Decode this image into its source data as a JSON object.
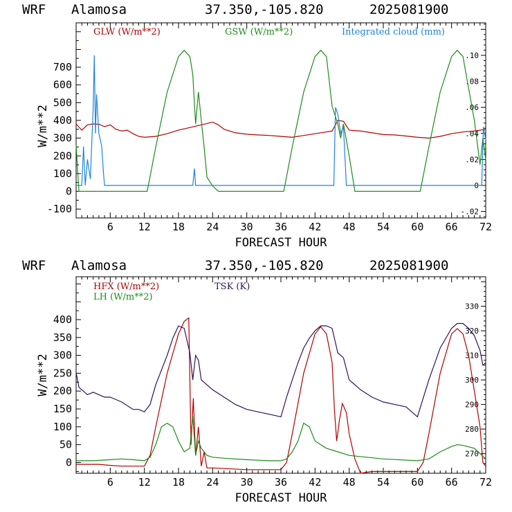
{
  "header": {
    "model": "WRF",
    "station": "Alamosa",
    "coords": "37.350,-105.820",
    "init": "2025081900"
  },
  "colors": {
    "red": "#b00000",
    "green": "#1a8c1a",
    "blue": "#1e82dc",
    "purple": "#2e0f5a"
  },
  "chart_data": [
    {
      "type": "line",
      "xlabel": "FORECAST HOUR",
      "ylabel": "W/m**2",
      "xlim": [
        0,
        72
      ],
      "ylim": [
        -150,
        950
      ],
      "y2lim": [
        -0.025,
        0.125
      ],
      "xticks": [
        6,
        12,
        18,
        24,
        30,
        36,
        42,
        48,
        54,
        60,
        66,
        72
      ],
      "xtick_labels": [
        "6",
        "12",
        "18",
        "24",
        "30",
        "36",
        "42",
        "48",
        "54",
        "60",
        "66",
        "72"
      ],
      "yticks": [
        -100,
        0,
        100,
        200,
        300,
        400,
        500,
        600,
        700
      ],
      "ytick_labels": [
        "-100",
        "0",
        "100",
        "200",
        "300",
        "400",
        "500",
        "600",
        "700"
      ],
      "y2ticks": [
        -0.02,
        0,
        0.02,
        0.04,
        0.06,
        0.08,
        0.1
      ],
      "y2tick_labels": [
        "-.02",
        "0",
        ".02",
        ".04",
        ".06",
        ".08",
        ".10"
      ],
      "series": [
        {
          "name": "GLW (W/m**2)",
          "axis": "left",
          "color": "#b00000",
          "x": [
            0,
            1,
            2,
            3,
            4,
            5,
            6,
            7,
            8,
            9,
            10,
            11,
            12,
            14,
            16,
            18,
            20,
            22,
            24,
            25,
            26,
            28,
            30,
            32,
            34,
            36,
            38,
            40,
            42,
            44,
            45,
            46,
            47,
            48,
            50,
            52,
            54,
            56,
            58,
            60,
            62,
            64,
            66,
            68,
            70,
            71,
            72
          ],
          "y": [
            380,
            345,
            375,
            380,
            378,
            365,
            375,
            350,
            340,
            345,
            325,
            310,
            305,
            310,
            325,
            345,
            360,
            375,
            390,
            375,
            350,
            330,
            322,
            318,
            315,
            310,
            305,
            315,
            325,
            335,
            340,
            400,
            395,
            345,
            340,
            330,
            320,
            318,
            312,
            305,
            300,
            310,
            325,
            335,
            340,
            345,
            350
          ]
        },
        {
          "name": "GSW (W/m**2)",
          "axis": "left",
          "color": "#1a8c1a",
          "x": [
            0,
            0.5,
            12.5,
            14,
            16,
            18,
            19,
            20,
            20.5,
            21,
            21.5,
            22,
            22.5,
            23,
            24,
            25,
            36.5,
            38,
            40,
            42,
            43,
            44,
            45,
            46,
            46.5,
            47,
            48,
            49,
            60.5,
            62,
            64,
            66,
            67,
            68,
            70,
            71,
            71.5,
            72
          ],
          "y": [
            260,
            0,
            0,
            250,
            560,
            760,
            795,
            760,
            660,
            380,
            560,
            400,
            250,
            80,
            30,
            0,
            0,
            250,
            560,
            760,
            795,
            760,
            480,
            380,
            300,
            380,
            200,
            0,
            0,
            250,
            560,
            760,
            795,
            760,
            400,
            150,
            300,
            180
          ]
        },
        {
          "name": "Integrated cloud (mm)",
          "axis": "right",
          "color": "#1e82dc",
          "x": [
            0,
            1,
            1.3,
            1.6,
            2,
            2.5,
            3,
            3.2,
            3.4,
            3.6,
            4,
            4.5,
            4.8,
            5,
            20.5,
            20.8,
            21,
            45.3,
            45.6,
            46,
            46.5,
            47,
            47.5,
            71.3,
            71.6,
            72
          ],
          "y": [
            0,
            0,
            0.03,
            0,
            0.02,
            0.005,
            0.06,
            0.1,
            0.04,
            0.07,
            0.04,
            0.03,
            0.01,
            0,
            0,
            0.013,
            0,
            0,
            0.06,
            0.055,
            0.04,
            0.045,
            0,
            0,
            0.045,
            0.035
          ]
        }
      ]
    },
    {
      "type": "line",
      "xlabel": "FORECAST HOUR",
      "ylabel": "W/m**2",
      "xlim": [
        0,
        72
      ],
      "ylim": [
        -30,
        520
      ],
      "y2lim": [
        262,
        342
      ],
      "xticks": [
        6,
        12,
        18,
        24,
        30,
        36,
        42,
        48,
        54,
        60,
        66,
        72
      ],
      "xtick_labels": [
        "6",
        "12",
        "18",
        "24",
        "30",
        "36",
        "42",
        "48",
        "54",
        "60",
        "66",
        "72"
      ],
      "yticks": [
        0,
        50,
        100,
        150,
        200,
        250,
        300,
        350,
        400
      ],
      "ytick_labels": [
        "0",
        "50",
        "100",
        "150",
        "200",
        "250",
        "300",
        "350",
        "400"
      ],
      "y2ticks": [
        270,
        280,
        290,
        300,
        310,
        320,
        330
      ],
      "y2tick_labels": [
        "270",
        "280",
        "290",
        "300",
        "310",
        "320",
        "330"
      ],
      "series": [
        {
          "name": "HFX (W/m**2)",
          "axis": "left",
          "color": "#b00000",
          "x": [
            0,
            2,
            4,
            6,
            8,
            10,
            12,
            13,
            14,
            16,
            18,
            19,
            19.8,
            20.2,
            20.6,
            21,
            21.5,
            22,
            22.5,
            23,
            24,
            30,
            36,
            37,
            38,
            40,
            42,
            43,
            44,
            45,
            45.4,
            45.8,
            46.3,
            46.8,
            47.5,
            48,
            49,
            50,
            52,
            56,
            60,
            61,
            62,
            64,
            66,
            67,
            68,
            69,
            70,
            71,
            71.5,
            72
          ],
          "y": [
            -5,
            -5,
            -5,
            -8,
            -10,
            -10,
            -10,
            20,
            100,
            250,
            360,
            395,
            405,
            50,
            180,
            20,
            100,
            -10,
            30,
            -15,
            -15,
            -20,
            -20,
            0,
            80,
            250,
            360,
            380,
            360,
            280,
            150,
            60,
            120,
            165,
            140,
            80,
            10,
            -30,
            -25,
            -25,
            -25,
            0,
            80,
            250,
            360,
            375,
            360,
            300,
            200,
            100,
            0,
            -10
          ]
        },
        {
          "name": "LH (W/m**2)",
          "axis": "left",
          "color": "#1a8c1a",
          "x": [
            0,
            3,
            6,
            8,
            10,
            12,
            13,
            14,
            15,
            16,
            17,
            18,
            19,
            20,
            20.5,
            21,
            21.5,
            22,
            22.5,
            23,
            24,
            26,
            30,
            34,
            36,
            37,
            38,
            39,
            40,
            41,
            42,
            44,
            46,
            48,
            54,
            60,
            62,
            64,
            66,
            67,
            68,
            70,
            71,
            72
          ],
          "y": [
            5,
            5,
            8,
            10,
            8,
            5,
            15,
            50,
            100,
            110,
            100,
            60,
            30,
            40,
            130,
            20,
            60,
            40,
            30,
            20,
            15,
            12,
            8,
            5,
            5,
            10,
            30,
            60,
            110,
            100,
            60,
            40,
            30,
            20,
            10,
            5,
            10,
            30,
            45,
            50,
            48,
            40,
            25,
            10
          ]
        },
        {
          "name": "TSK (K)",
          "axis": "right",
          "color": "#2e0f5a",
          "x": [
            0,
            0.5,
            1,
            2,
            3,
            4,
            5,
            6,
            7,
            8,
            10,
            11,
            12,
            13,
            14,
            16,
            17,
            18,
            19,
            20,
            20.5,
            21,
            21.5,
            22,
            23,
            24,
            26,
            28,
            30,
            32,
            34,
            36,
            37,
            38,
            39,
            40,
            41,
            42,
            43,
            44,
            45,
            46,
            47,
            48,
            50,
            52,
            54,
            56,
            58,
            60,
            62,
            64,
            66,
            67,
            68,
            69,
            70,
            71,
            71.5,
            72
          ],
          "y": [
            303,
            297,
            296,
            294,
            295,
            294,
            293,
            293,
            292,
            291,
            288,
            288,
            287,
            290,
            298,
            310,
            317,
            322,
            321,
            311,
            300,
            310,
            308,
            300,
            298,
            296,
            293,
            290,
            288,
            287,
            286,
            285,
            293,
            300,
            307,
            313,
            317,
            320,
            322,
            322,
            321,
            311,
            309,
            300,
            296,
            293,
            291,
            290,
            289,
            285,
            300,
            313,
            321,
            323,
            323,
            321,
            318,
            312,
            306,
            307
          ]
        }
      ]
    }
  ]
}
